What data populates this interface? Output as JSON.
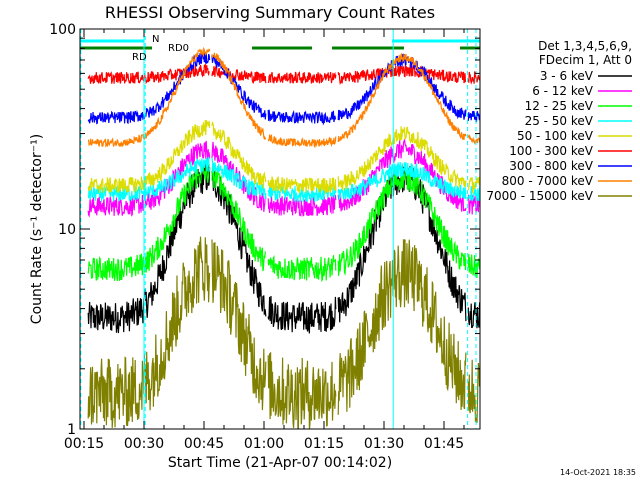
{
  "chart_data": {
    "type": "line",
    "title": "RHESSI Observing Summary Count Rates",
    "xlabel": "Start Time (21-Apr-07 00:14:02)",
    "ylabel": "Count Rate (s⁻¹ detector⁻¹)",
    "y_scale": "log",
    "ylim": [
      1,
      100
    ],
    "xlim_minutes": [
      0.0,
      100.0
    ],
    "x_ticks": [
      {
        "label": "00:15",
        "minute": 1
      },
      {
        "label": "00:30",
        "minute": 16
      },
      {
        "label": "00:45",
        "minute": 31
      },
      {
        "label": "01:00",
        "minute": 46
      },
      {
        "label": "01:15",
        "minute": 61
      },
      {
        "label": "01:30",
        "minute": 76
      },
      {
        "label": "01:45",
        "minute": 91
      }
    ],
    "y_ticks": [
      {
        "label": "1",
        "value": 1
      },
      {
        "label": "10",
        "value": 10
      },
      {
        "label": "100",
        "value": 100
      }
    ],
    "legend": {
      "placement": "right",
      "header": [
        "Det 1,3,4,5,6,9,",
        "FDecim 1, Att 0"
      ]
    },
    "series": [
      {
        "name": "3 - 6 keV",
        "color": "#000000",
        "base": 3.6,
        "peaks": [
          18,
          18
        ],
        "noise": 0.08
      },
      {
        "name": "6 - 12 keV",
        "color": "#ff00ff",
        "base": 13.0,
        "peaks": [
          25,
          25
        ],
        "noise": 0.05
      },
      {
        "name": "12 - 25 keV",
        "color": "#00ff00",
        "base": 6.3,
        "peaks": [
          19,
          18
        ],
        "noise": 0.06
      },
      {
        "name": "25 - 50 keV",
        "color": "#00ffff",
        "base": 15.0,
        "peaks": [
          21,
          20
        ],
        "noise": 0.04
      },
      {
        "name": "50 - 100 keV",
        "color": "#dcdc00",
        "base": 16.5,
        "peaks": [
          32,
          30
        ],
        "noise": 0.04
      },
      {
        "name": "100 - 300 keV",
        "color": "#ff0000",
        "base": 57.0,
        "peaks": [
          62,
          62
        ],
        "noise": 0.03
      },
      {
        "name": "300 - 800 keV",
        "color": "#0000ff",
        "base": 36.0,
        "peaks": [
          72,
          70
        ],
        "noise": 0.03
      },
      {
        "name": "800 - 7000 keV",
        "color": "#ff8000",
        "base": 27.0,
        "peaks": [
          77,
          72
        ],
        "noise": 0.02
      },
      {
        "name": "7000 - 15000 keV",
        "color": "#808000",
        "base": 1.5,
        "peaks": [
          6.5,
          6.0
        ],
        "noise": 0.18
      }
    ],
    "peak_minutes": [
      31.5,
      81.0
    ],
    "peak_width_minutes": 6.0,
    "data_gaps_minutes": [
      [
        0,
        2
      ],
      [
        32.5,
        33
      ],
      [
        46.5,
        47
      ],
      [
        64,
        64.5
      ],
      [
        96.5,
        97
      ]
    ],
    "annotations": [
      {
        "text": "N",
        "color": "#00bfff"
      },
      {
        "text": "RD0",
        "color": "#008000"
      },
      {
        "text": "RD",
        "color": "#008000"
      }
    ],
    "bars": {
      "night": {
        "color": "#00ffff",
        "spans_minutes": [
          [
            0,
            16
          ],
          [
            78,
            100
          ]
        ]
      },
      "rd0": {
        "color": "#008000",
        "spans_minutes": [
          [
            0,
            18
          ],
          [
            43,
            58
          ],
          [
            63,
            81
          ],
          [
            95,
            100
          ]
        ]
      }
    },
    "vertical_markers": {
      "solid_minutes": [
        16.0,
        78.3
      ],
      "dashed_minutes": [
        0.2,
        16.3,
        96.9,
        99.0
      ]
    },
    "footer": "14-Oct-2021 18:35"
  }
}
